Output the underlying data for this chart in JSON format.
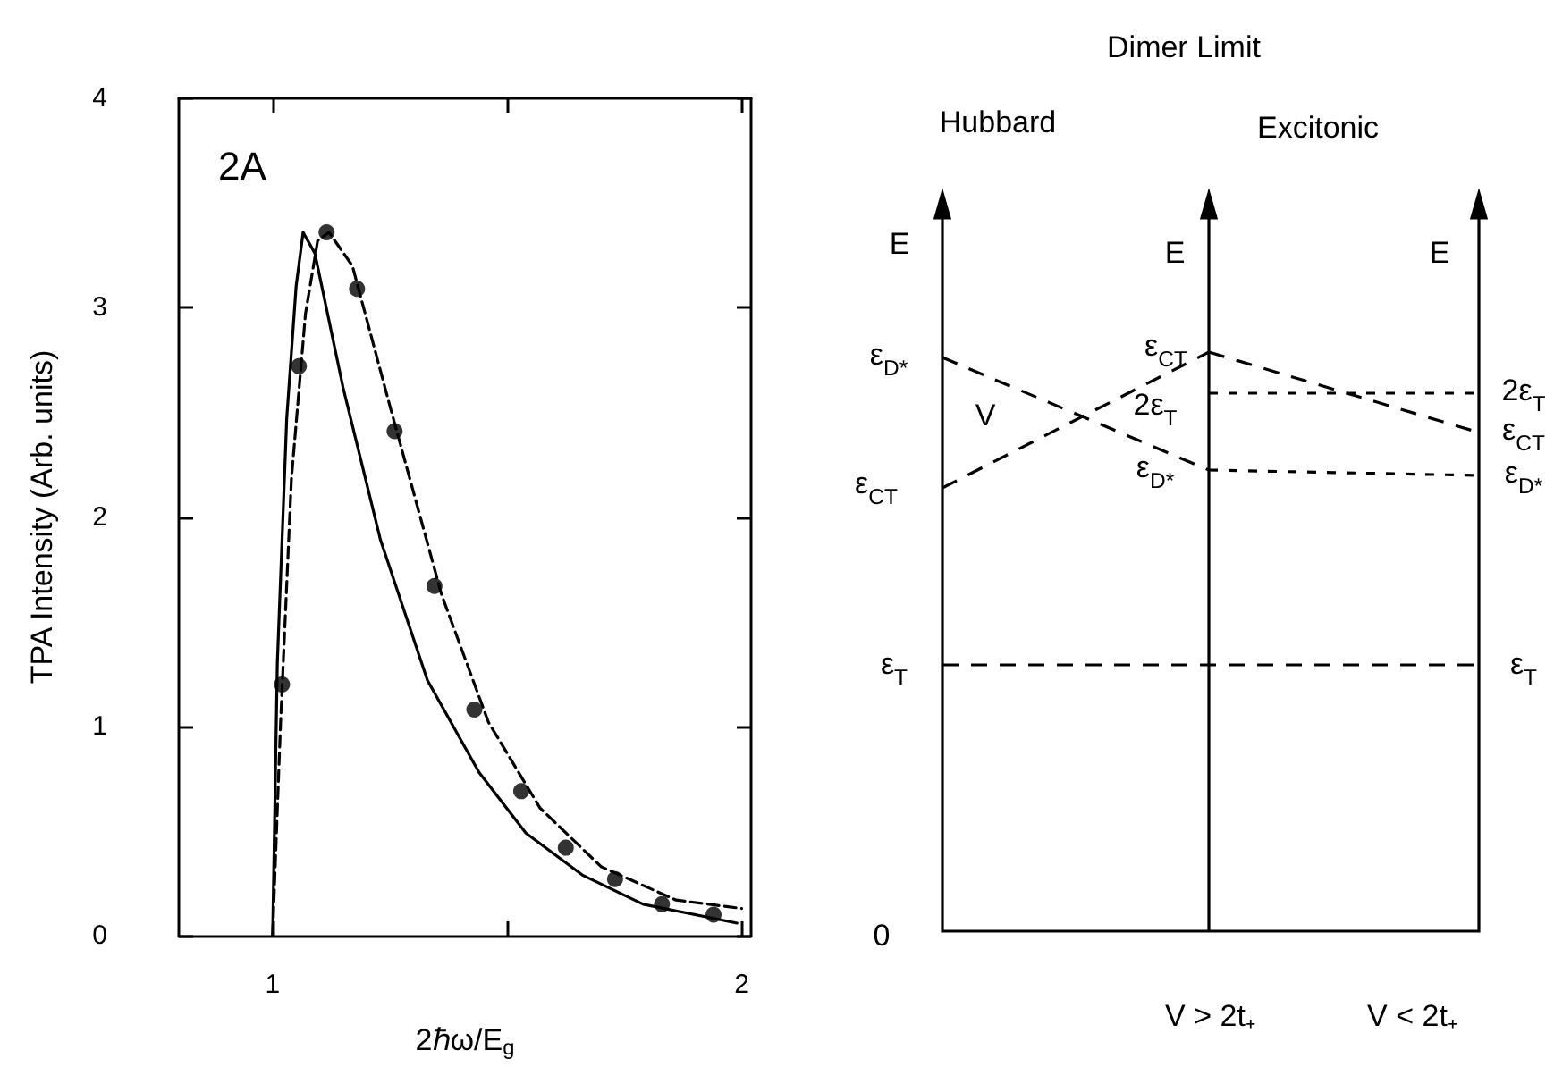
{
  "chart_data": [
    {
      "type": "line",
      "xlabel": "2ℏω/E$_{g}$",
      "ylabel": "TPA Intensity (Arb. units)",
      "annotations": [
        "2A"
      ],
      "xlim": [
        0.8,
        2.02
      ],
      "xticks": [
        1,
        {
          "value": 1.5,
          "label": null
        },
        2
      ],
      "ylim": [
        0,
        4
      ],
      "yticks": [
        0,
        1,
        2,
        3,
        4
      ],
      "series": [
        {
          "type": "line",
          "line_style": "solid",
          "marker": "none",
          "color": "#000000",
          "x": [
            1.0,
            1.01,
            1.03,
            1.05,
            1.065,
            1.09,
            1.15,
            1.23,
            1.33,
            1.44,
            1.54,
            1.66,
            1.79,
            1.99
          ],
          "values": [
            0,
            1.3,
            2.47,
            3.1,
            3.36,
            3.26,
            2.62,
            1.89,
            1.22,
            0.78,
            0.49,
            0.29,
            0.15,
            0.06
          ]
        },
        {
          "type": "line",
          "line_style": "dashed",
          "marker": "none",
          "color": "#000000",
          "x": [
            1.0,
            1.017,
            1.04,
            1.07,
            1.096,
            1.12,
            1.17,
            1.25,
            1.36,
            1.46,
            1.57,
            1.7,
            1.86,
            2.0
          ],
          "values": [
            0,
            1.02,
            2.18,
            2.97,
            3.32,
            3.36,
            3.2,
            2.53,
            1.63,
            1.02,
            0.61,
            0.33,
            0.17,
            0.13
          ]
        },
        {
          "type": "scatter",
          "marker": "circle",
          "color": "#000000",
          "x": [
            1.02,
            1.056,
            1.115,
            1.18,
            1.26,
            1.345,
            1.43,
            1.53,
            1.625,
            1.73,
            1.83,
            1.94
          ],
          "values": [
            1.2,
            2.72,
            3.36,
            3.09,
            2.41,
            1.67,
            1.08,
            0.69,
            0.42,
            0.27,
            0.15,
            0.1
          ]
        }
      ]
    },
    {
      "type": "other",
      "title": "Dimer Limit",
      "annotations": [
        "Hubbard",
        "Excitonic",
        "E",
        "E",
        "E",
        "ε$_{D*}$",
        "V",
        "ε$_{CT}$",
        "ε$_{T}$",
        "ε$_{CT}$",
        "2ε$_{T}$",
        "ε$_{D*}$",
        "2ε$_{T}$",
        "ε$_{CT}$",
        "ε$_{D*}$",
        "ε$_{T}$",
        "0",
        "V > 2t₊",
        "V < 2t₊"
      ]
    }
  ]
}
